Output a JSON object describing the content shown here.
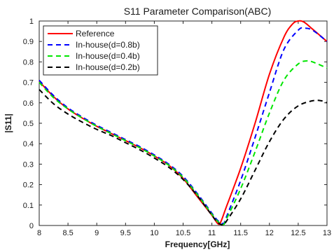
{
  "chart_data": {
    "type": "line",
    "title": "S11 Parameter Comparison(ABC)",
    "xlabel": "Frequency[GHz]",
    "ylabel": "|S11|",
    "xlim": [
      8,
      13
    ],
    "ylim": [
      0,
      1
    ],
    "xticks": [
      8,
      8.5,
      9,
      9.5,
      10,
      10.5,
      11,
      11.5,
      12,
      12.5,
      13
    ],
    "yticks": [
      0,
      0.1,
      0.2,
      0.3,
      0.4,
      0.5,
      0.6,
      0.7,
      0.8,
      0.9,
      1
    ],
    "xtick_labels": [
      "8",
      "8.5",
      "9",
      "9.5",
      "10",
      "10.5",
      "11",
      "11.5",
      "12",
      "12.5",
      "13"
    ],
    "ytick_labels": [
      "0",
      "0.1",
      "0.2",
      "0.3",
      "0.4",
      "0.5",
      "0.6",
      "0.7",
      "0.8",
      "0.9",
      "1"
    ],
    "grid": false,
    "legend_position": "top-left",
    "series": [
      {
        "name": "Reference",
        "color": "#ff0000",
        "dash": "solid",
        "x": [
          8,
          8.25,
          8.5,
          8.75,
          9,
          9.25,
          9.5,
          9.75,
          10,
          10.25,
          10.5,
          10.75,
          11,
          11.1,
          11.15,
          11.25,
          11.5,
          11.75,
          12,
          12.25,
          12.4,
          12.5,
          12.6,
          12.75,
          13
        ],
        "y": [
          0.705,
          0.63,
          0.57,
          0.525,
          0.485,
          0.45,
          0.415,
          0.38,
          0.34,
          0.295,
          0.23,
          0.14,
          0.05,
          0.01,
          0.015,
          0.09,
          0.28,
          0.5,
          0.74,
          0.92,
          0.985,
          1.0,
          0.995,
          0.96,
          0.9
        ]
      },
      {
        "name": "In-house(d=0.8b)",
        "color": "#0000ff",
        "dash": "dashed",
        "x": [
          8,
          8.25,
          8.5,
          8.75,
          9,
          9.25,
          9.5,
          9.75,
          10,
          10.25,
          10.5,
          10.75,
          11,
          11.1,
          11.2,
          11.25,
          11.5,
          11.75,
          12,
          12.25,
          12.5,
          12.6,
          12.75,
          13
        ],
        "y": [
          0.71,
          0.635,
          0.575,
          0.53,
          0.49,
          0.455,
          0.42,
          0.385,
          0.345,
          0.3,
          0.24,
          0.155,
          0.06,
          0.025,
          0.01,
          0.04,
          0.22,
          0.43,
          0.65,
          0.86,
          0.955,
          0.965,
          0.955,
          0.9
        ]
      },
      {
        "name": "In-house(d=0.4b)",
        "color": "#00e600",
        "dash": "dashed",
        "x": [
          8,
          8.25,
          8.5,
          8.75,
          9,
          9.25,
          9.5,
          9.75,
          10,
          10.25,
          10.5,
          10.75,
          11,
          11.1,
          11.2,
          11.25,
          11.5,
          11.75,
          12,
          12.25,
          12.5,
          12.65,
          12.75,
          13
        ],
        "y": [
          0.7,
          0.625,
          0.57,
          0.525,
          0.485,
          0.45,
          0.415,
          0.38,
          0.34,
          0.295,
          0.235,
          0.15,
          0.055,
          0.02,
          0.005,
          0.03,
          0.18,
          0.36,
          0.55,
          0.71,
          0.79,
          0.805,
          0.8,
          0.77
        ]
      },
      {
        "name": "In-house(d=0.2b)",
        "color": "#000000",
        "dash": "dashed",
        "x": [
          8,
          8.25,
          8.5,
          8.75,
          9,
          9.25,
          9.5,
          9.75,
          10,
          10.25,
          10.5,
          10.75,
          11,
          11.1,
          11.2,
          11.25,
          11.5,
          11.75,
          12,
          12.25,
          12.5,
          12.75,
          12.9,
          13
        ],
        "y": [
          0.665,
          0.595,
          0.545,
          0.505,
          0.47,
          0.44,
          0.405,
          0.37,
          0.33,
          0.285,
          0.225,
          0.145,
          0.05,
          0.015,
          0.003,
          0.02,
          0.13,
          0.27,
          0.41,
          0.52,
          0.585,
          0.61,
          0.61,
          0.6
        ]
      }
    ]
  }
}
